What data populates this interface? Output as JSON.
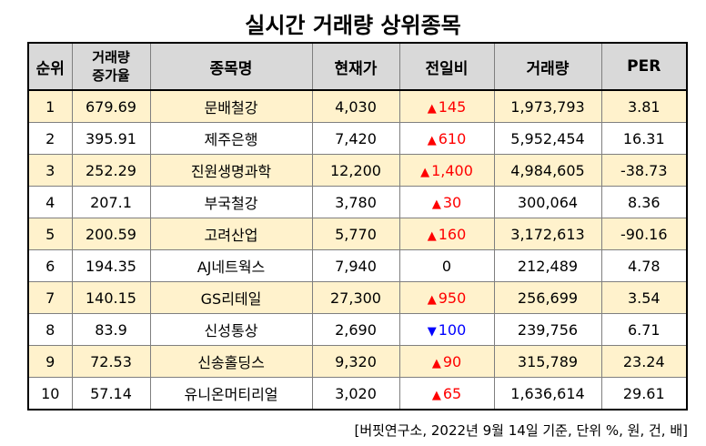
{
  "title": "실시간 거래량 상위종목",
  "headers": {
    "rank": "순위",
    "increase_line1": "거래량",
    "increase_line2": "증가율",
    "name": "종목명",
    "price": "현재가",
    "change": "전일비",
    "volume": "거래량",
    "per": "PER"
  },
  "rows": [
    {
      "rank": "1",
      "increase": "679.69",
      "name": "문배철강",
      "price": "4,030",
      "change": "145",
      "dir": "up",
      "volume": "1,973,793",
      "per": "3.81"
    },
    {
      "rank": "2",
      "increase": "395.91",
      "name": "제주은행",
      "price": "7,420",
      "change": "610",
      "dir": "up",
      "volume": "5,952,454",
      "per": "16.31"
    },
    {
      "rank": "3",
      "increase": "252.29",
      "name": "진원생명과학",
      "price": "12,200",
      "change": "1,400",
      "dir": "up",
      "volume": "4,984,605",
      "per": "-38.73"
    },
    {
      "rank": "4",
      "increase": "207.1",
      "name": "부국철강",
      "price": "3,780",
      "change": "30",
      "dir": "up",
      "volume": "300,064",
      "per": "8.36"
    },
    {
      "rank": "5",
      "increase": "200.59",
      "name": "고려산업",
      "price": "5,770",
      "change": "160",
      "dir": "up",
      "volume": "3,172,613",
      "per": "-90.16"
    },
    {
      "rank": "6",
      "increase": "194.35",
      "name": "AJ네트웍스",
      "price": "7,940",
      "change": "0",
      "dir": "flat",
      "volume": "212,489",
      "per": "4.78"
    },
    {
      "rank": "7",
      "increase": "140.15",
      "name": "GS리테일",
      "price": "27,300",
      "change": "950",
      "dir": "up",
      "volume": "256,699",
      "per": "3.54"
    },
    {
      "rank": "8",
      "increase": "83.9",
      "name": "신성통상",
      "price": "2,690",
      "change": "100",
      "dir": "down",
      "volume": "239,756",
      "per": "6.71"
    },
    {
      "rank": "9",
      "increase": "72.53",
      "name": "신송홀딩스",
      "price": "9,320",
      "change": "90",
      "dir": "up",
      "volume": "315,789",
      "per": "23.24"
    },
    {
      "rank": "10",
      "increase": "57.14",
      "name": "유니온머티리얼",
      "price": "3,020",
      "change": "65",
      "dir": "up",
      "volume": "1,636,614",
      "per": "29.61"
    }
  ],
  "symbols": {
    "up": "▲",
    "down": "▼"
  },
  "colors": {
    "up": "#ff0000",
    "down": "#0000ff",
    "header_bg": "#d9d9d9",
    "stripe_bg": "#fff2cc"
  },
  "footnote": "[버핏연구소, 2022년 9월 14일 기준, 단위 %, 원, 건, 배]"
}
